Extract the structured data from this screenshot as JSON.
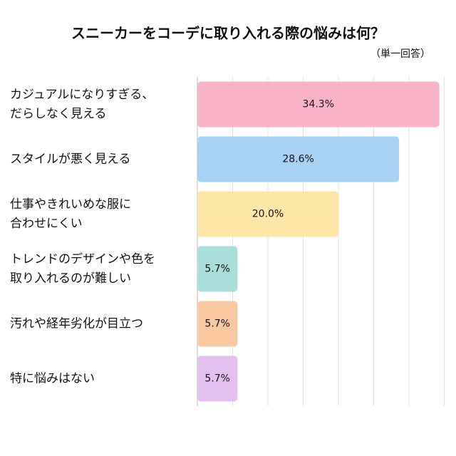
{
  "chart_data": {
    "type": "bar",
    "orientation": "horizontal",
    "title": "スニーカーをコーデに取り入れる際の悩みは何？",
    "subtitle": "（単一回答）",
    "categories": [
      "カジュアルになりすぎる、\nだらしなく見える",
      "スタイルが悪く見える",
      "仕事やきれいめな服に\n合わせにくい",
      "トレンドのデザインや色を\n取り入れるのが難しい",
      "汚れや経年劣化が目立つ",
      "特に悩みはない"
    ],
    "values": [
      34.3,
      28.6,
      20.0,
      5.7,
      5.7,
      5.7
    ],
    "value_labels": [
      "34.3%",
      "28.6%",
      "20.0%",
      "5.7%",
      "5.7%",
      "5.7%"
    ],
    "colors": [
      "#f9b3c7",
      "#a6d2f5",
      "#fde6a6",
      "#a8dfdb",
      "#f9c8a0",
      "#e4c0f2"
    ],
    "xlim": [
      0,
      35
    ],
    "xticks": [
      0,
      5,
      10,
      15,
      20,
      25,
      30,
      35
    ],
    "grid": true
  }
}
